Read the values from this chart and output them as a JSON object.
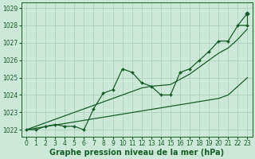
{
  "xlabel": "Graphe pression niveau de la mer (hPa)",
  "bg_color": "#cce8d8",
  "grid_color": "#aaccbb",
  "line_color": "#1a5c2a",
  "marker_color": "#1a5c2a",
  "x_values": [
    0,
    1,
    2,
    3,
    4,
    5,
    6,
    7,
    8,
    9,
    10,
    11,
    12,
    13,
    14,
    15,
    16,
    17,
    18,
    19,
    20,
    21,
    22,
    23
  ],
  "y_main": [
    1022.0,
    1022.0,
    1022.2,
    1022.3,
    1022.2,
    1022.2,
    1022.0,
    1023.2,
    1024.1,
    1024.3,
    1025.5,
    1025.3,
    1024.7,
    1024.5,
    1024.0,
    1024.0,
    1025.3,
    1025.5,
    1026.0,
    1026.5,
    1027.1,
    1027.1,
    1028.0,
    1028.0
  ],
  "y_trend_low": [
    1022.0,
    1022.09,
    1022.18,
    1022.27,
    1022.36,
    1022.45,
    1022.54,
    1022.63,
    1022.72,
    1022.81,
    1022.9,
    1022.99,
    1023.08,
    1023.17,
    1023.26,
    1023.35,
    1023.44,
    1023.53,
    1023.62,
    1023.71,
    1023.8,
    1024.0,
    1024.5,
    1025.0
  ],
  "y_trend_high": [
    1022.0,
    1022.2,
    1022.4,
    1022.6,
    1022.8,
    1023.0,
    1023.2,
    1023.4,
    1023.6,
    1023.8,
    1024.0,
    1024.2,
    1024.4,
    1024.5,
    1024.55,
    1024.6,
    1024.9,
    1025.2,
    1025.6,
    1026.0,
    1026.4,
    1026.7,
    1027.2,
    1027.8
  ],
  "y_extra_spike": 1028.7,
  "ylim_min": 1021.6,
  "ylim_max": 1029.3,
  "yticks": [
    1022,
    1023,
    1024,
    1025,
    1026,
    1027,
    1028,
    1029
  ],
  "xticks": [
    0,
    1,
    2,
    3,
    4,
    5,
    6,
    7,
    8,
    9,
    10,
    11,
    12,
    13,
    14,
    15,
    16,
    17,
    18,
    19,
    20,
    21,
    22,
    23
  ],
  "xlabel_fontsize": 7,
  "tick_fontsize": 5.5,
  "linewidth": 0.9,
  "markersize": 2.0
}
